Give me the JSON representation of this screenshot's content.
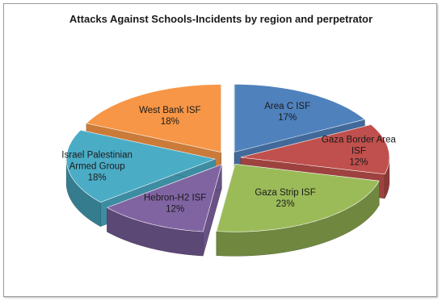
{
  "chart_data": {
    "type": "pie",
    "title": "Attacks Against Schools-Incidents by region and perpetrator",
    "slices": [
      {
        "label": "Area C ISF",
        "value": 17,
        "pct_label": "17%",
        "color": "#4f81bd"
      },
      {
        "label": "Gaza Border Area ISF",
        "value": 12,
        "pct_label": "12%",
        "color": "#c0504d"
      },
      {
        "label": "Gaza Strip ISF",
        "value": 23,
        "pct_label": "23%",
        "color": "#9bbb59"
      },
      {
        "label": "Hebron-H2 ISF",
        "value": 12,
        "pct_label": "12%",
        "color": "#8064a2"
      },
      {
        "label": "Israel Palestinian Armed Group",
        "value": 18,
        "pct_label": "18%",
        "color": "#4bacc6"
      },
      {
        "label": "West Bank ISF",
        "value": 18,
        "pct_label": "18%",
        "color": "#f79646"
      }
    ],
    "style": "3d-exploded"
  }
}
